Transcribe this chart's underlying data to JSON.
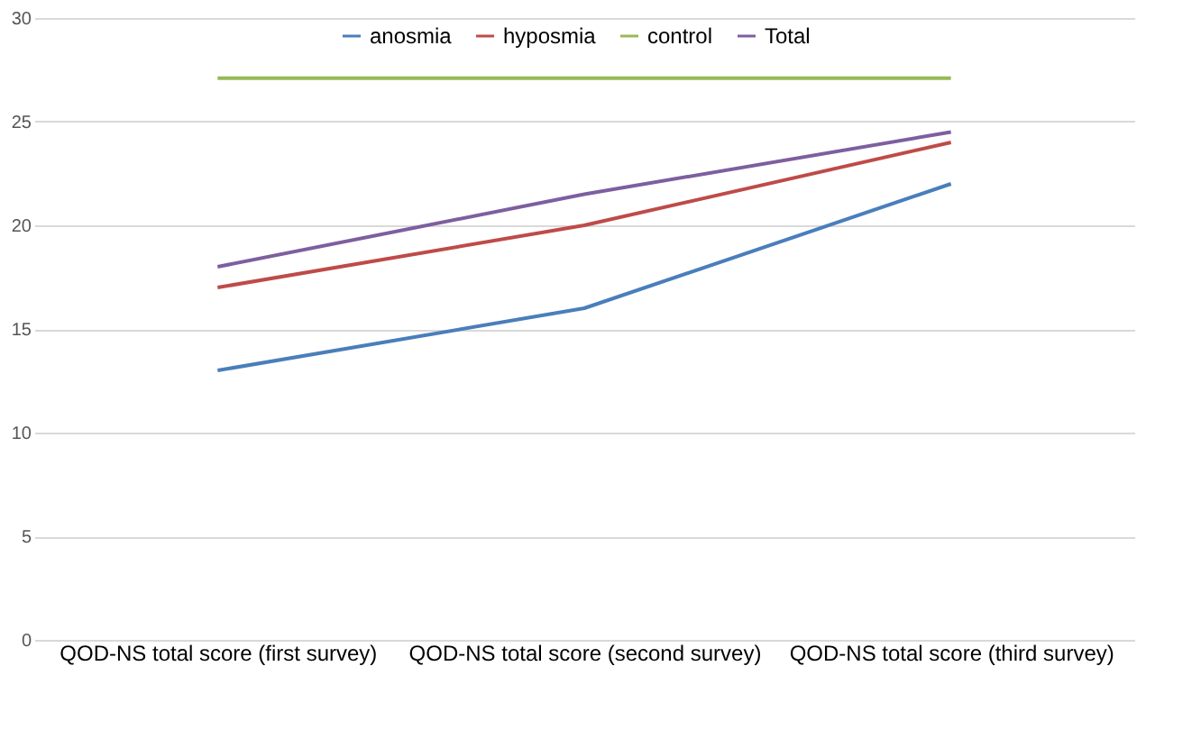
{
  "chart_data": {
    "type": "line",
    "categories": [
      "QOD-NS total score (first survey)",
      "QOD-NS total score (second survey)",
      "QOD-NS total score (third survey)"
    ],
    "series": [
      {
        "name": "anosmia",
        "color": "#4a7ebb",
        "values": [
          13,
          16,
          22
        ]
      },
      {
        "name": "hyposmia",
        "color": "#be4b48",
        "values": [
          17,
          20,
          24
        ]
      },
      {
        "name": "control",
        "color": "#98b954",
        "values": [
          27.1,
          27.1,
          27.1
        ]
      },
      {
        "name": "Total",
        "color": "#7d5fa0",
        "values": [
          18,
          21.5,
          24.5
        ]
      }
    ],
    "ylim": [
      0,
      30
    ],
    "yticks": [
      0,
      5,
      10,
      15,
      20,
      25,
      30
    ],
    "grid": "y",
    "legend": "top",
    "marker": "none",
    "line_style": "solid"
  }
}
